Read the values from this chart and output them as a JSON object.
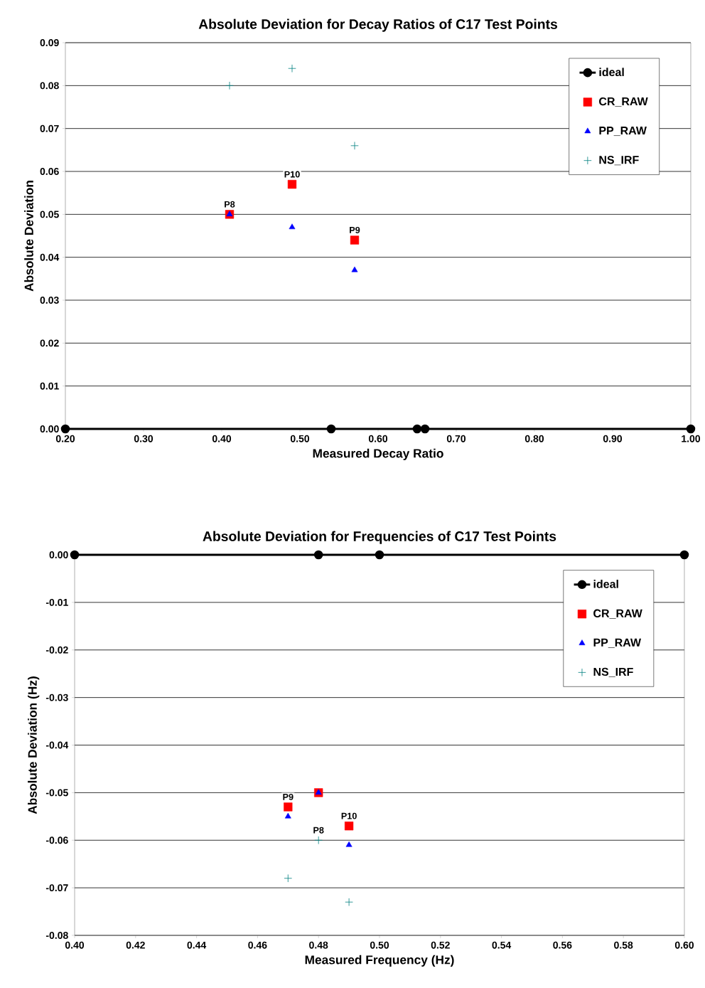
{
  "chart_data": [
    {
      "type": "scatter",
      "title": "Absolute Deviation for Decay Ratios of C17 Test Points",
      "xlabel": "Measured Decay Ratio",
      "ylabel": "Absolute Deviation",
      "xlim": [
        0.2,
        1.0
      ],
      "ylim": [
        0,
        0.09
      ],
      "xticks": [
        {
          "value": 0.2,
          "label": "0.20"
        },
        {
          "value": 0.3,
          "label": "0.30"
        },
        {
          "value": 0.4,
          "label": "0.40"
        },
        {
          "value": 0.5,
          "label": "0.50"
        },
        {
          "value": 0.6,
          "label": "0.60"
        },
        {
          "value": 0.7,
          "label": "0.70"
        },
        {
          "value": 0.8,
          "label": "0.80"
        },
        {
          "value": 0.9,
          "label": "0.90"
        },
        {
          "value": 1.0,
          "label": "1.00"
        }
      ],
      "yticks": [
        {
          "value": 0,
          "label": "0.00"
        },
        {
          "value": 0.01,
          "label": "0.01"
        },
        {
          "value": 0.02,
          "label": "0.02"
        },
        {
          "value": 0.03,
          "label": "0.03"
        },
        {
          "value": 0.04,
          "label": "0.04"
        },
        {
          "value": 0.05,
          "label": "0.05"
        },
        {
          "value": 0.06,
          "label": "0.06"
        },
        {
          "value": 0.07,
          "label": "0.07"
        },
        {
          "value": 0.08,
          "label": "0.08"
        },
        {
          "value": 0.09,
          "label": "0.09"
        }
      ],
      "grid": "y",
      "legend": "top right",
      "series": [
        {
          "name": "ideal",
          "type": "line",
          "color": "#000000",
          "marker": "circle",
          "line_style": "solid",
          "x": [
            0.2,
            0.54,
            0.65,
            0.66,
            1.0
          ],
          "values": [
            0,
            0,
            0,
            0,
            0
          ]
        },
        {
          "name": "CR_RAW",
          "color": "#ff0000",
          "marker": "square",
          "x": [
            0.41,
            0.49,
            0.57
          ],
          "values": [
            0.05,
            0.057,
            0.044
          ]
        },
        {
          "name": "PP_RAW",
          "color": "#0000ff",
          "marker": "triangle",
          "x": [
            0.41,
            0.49,
            0.57
          ],
          "values": [
            0.05,
            0.047,
            0.037
          ]
        },
        {
          "name": "NS_IRF",
          "color": "#008080",
          "marker": "cross",
          "x": [
            0.41,
            0.49,
            0.57
          ],
          "values": [
            0.08,
            0.084,
            0.066
          ]
        }
      ],
      "annotations": [
        {
          "text": "P8",
          "x": 0.41,
          "y": 0.05
        },
        {
          "text": "P10",
          "x": 0.49,
          "y": 0.057
        },
        {
          "text": "P9",
          "x": 0.57,
          "y": 0.044
        }
      ]
    },
    {
      "type": "scatter",
      "title": "Absolute Deviation for Frequencies of C17 Test Points",
      "xlabel": "Measured Frequency (Hz)",
      "ylabel": "Absolute Deviation (Hz)",
      "xlim": [
        0.4,
        0.6
      ],
      "ylim": [
        -0.08,
        0
      ],
      "xticks": [
        {
          "value": 0.4,
          "label": "0.40"
        },
        {
          "value": 0.42,
          "label": "0.42"
        },
        {
          "value": 0.44,
          "label": "0.44"
        },
        {
          "value": 0.46,
          "label": "0.46"
        },
        {
          "value": 0.48,
          "label": "0.48"
        },
        {
          "value": 0.5,
          "label": "0.50"
        },
        {
          "value": 0.52,
          "label": "0.52"
        },
        {
          "value": 0.54,
          "label": "0.54"
        },
        {
          "value": 0.56,
          "label": "0.56"
        },
        {
          "value": 0.58,
          "label": "0.58"
        },
        {
          "value": 0.6,
          "label": "0.60"
        }
      ],
      "yticks": [
        {
          "value": -0.08,
          "label": "-0.08"
        },
        {
          "value": -0.07,
          "label": "-0.07"
        },
        {
          "value": -0.06,
          "label": "-0.06"
        },
        {
          "value": -0.05,
          "label": "-0.05"
        },
        {
          "value": -0.04,
          "label": "-0.04"
        },
        {
          "value": -0.03,
          "label": "-0.03"
        },
        {
          "value": -0.02,
          "label": "-0.02"
        },
        {
          "value": -0.01,
          "label": "-0.01"
        },
        {
          "value": 0,
          "label": "0.00"
        }
      ],
      "grid": "y",
      "legend": "top right",
      "series": [
        {
          "name": "ideal",
          "type": "line",
          "color": "#000000",
          "marker": "circle",
          "line_style": "solid",
          "x": [
            0.4,
            0.48,
            0.5,
            0.6
          ],
          "values": [
            0,
            0,
            0,
            0
          ]
        },
        {
          "name": "CR_RAW",
          "color": "#ff0000",
          "marker": "square",
          "x": [
            0.47,
            0.48,
            0.49
          ],
          "values": [
            -0.053,
            -0.05,
            -0.057
          ]
        },
        {
          "name": "PP_RAW",
          "color": "#0000ff",
          "marker": "triangle",
          "x": [
            0.47,
            0.48,
            0.49
          ],
          "values": [
            -0.055,
            -0.05,
            -0.061
          ]
        },
        {
          "name": "NS_IRF",
          "color": "#008080",
          "marker": "cross",
          "x": [
            0.47,
            0.48,
            0.49
          ],
          "values": [
            -0.068,
            -0.06,
            -0.073
          ]
        }
      ],
      "annotations": [
        {
          "text": "P9",
          "x": 0.47,
          "y": -0.053
        },
        {
          "text": "P8",
          "x": 0.48,
          "y": -0.06
        },
        {
          "text": "P10",
          "x": 0.49,
          "y": -0.057
        }
      ]
    }
  ]
}
